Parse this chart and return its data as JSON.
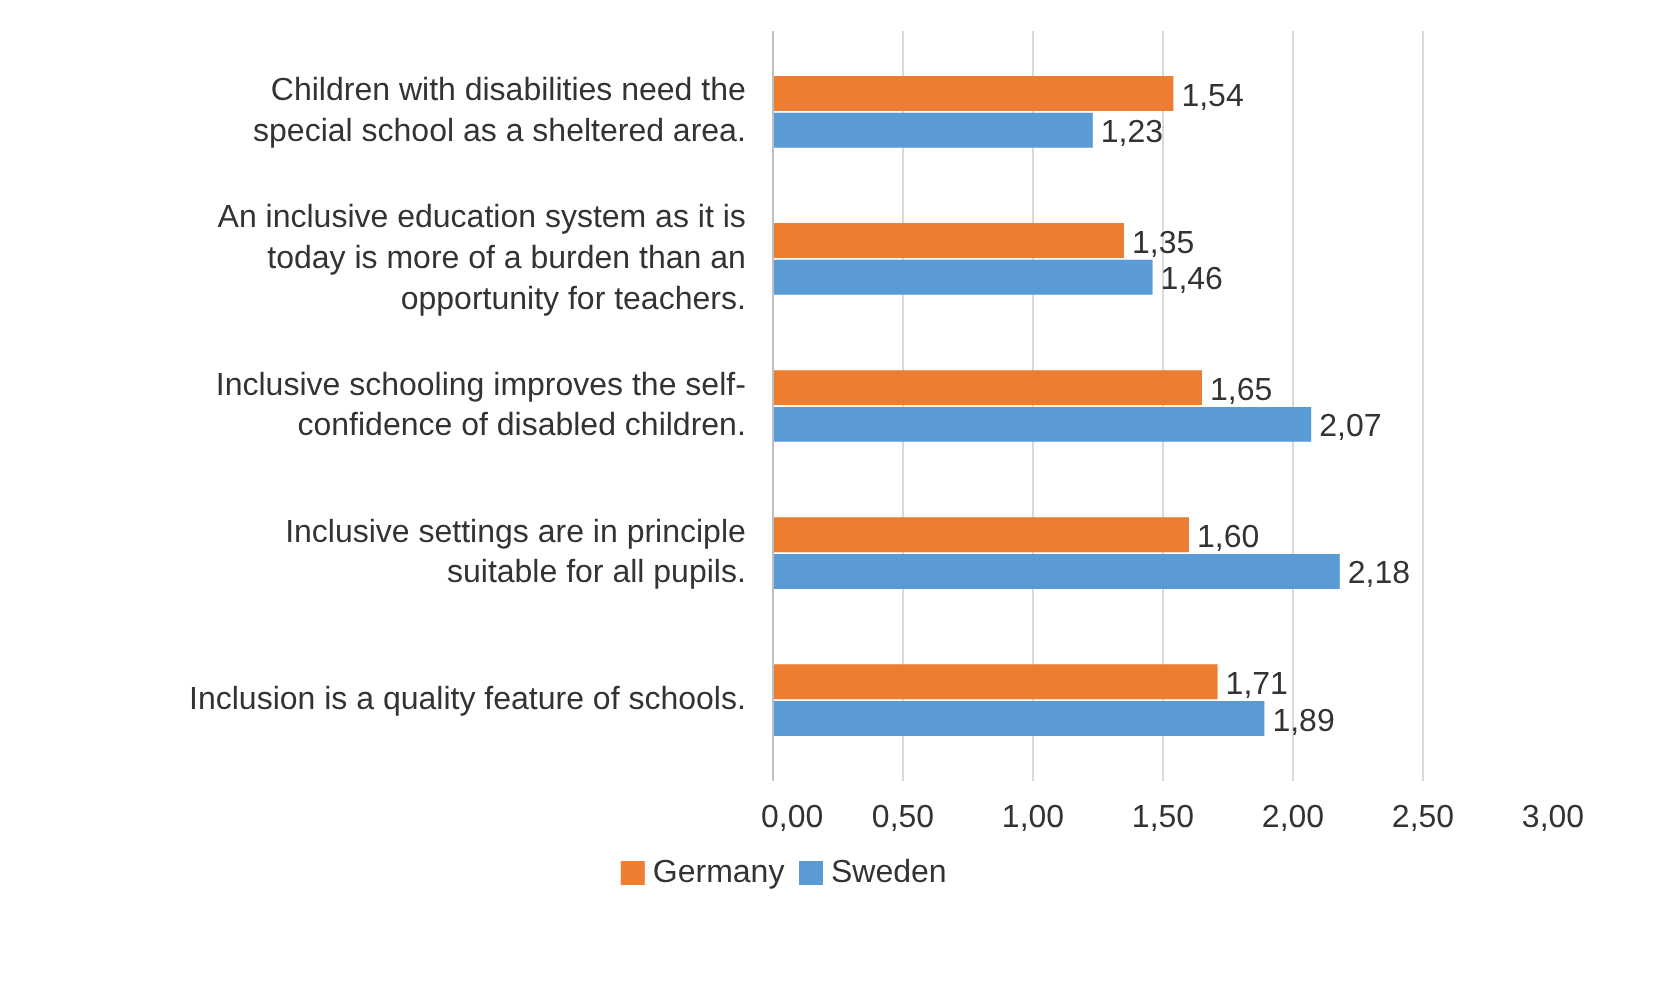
{
  "chart_data": {
    "type": "bar",
    "orientation": "horizontal",
    "categories": [
      "Children with disabilities need the special school as a sheltered area.",
      "An inclusive education system as it is today is more of a burden than an opportunity for teachers.",
      "Inclusive schooling improves the self-confidence of disabled children.",
      "Inclusive settings are in principle suitable for all pupils.",
      "Inclusion is a quality feature of schools."
    ],
    "series": [
      {
        "name": "Germany",
        "color": "#ed7d31",
        "values": [
          1.54,
          1.35,
          1.65,
          1.6,
          1.71
        ],
        "value_labels": [
          "1,54",
          "1,35",
          "1,65",
          "1,60",
          "1,71"
        ]
      },
      {
        "name": "Sweden",
        "color": "#5b9bd5",
        "values": [
          1.23,
          1.46,
          2.07,
          2.18,
          1.89
        ],
        "value_labels": [
          "1,23",
          "1,46",
          "2,07",
          "2,18",
          "1,89"
        ]
      }
    ],
    "xlim": [
      0,
      3
    ],
    "xticks": [
      {
        "value": 0,
        "label": "0,00"
      },
      {
        "value": 0.5,
        "label": "0,50"
      },
      {
        "value": 1,
        "label": "1,00"
      },
      {
        "value": 1.5,
        "label": "1,50"
      },
      {
        "value": 2,
        "label": "2,00"
      },
      {
        "value": 2.5,
        "label": "2,50"
      },
      {
        "value": 3,
        "label": "3,00"
      }
    ],
    "grid": "x",
    "legend": "bottom"
  }
}
